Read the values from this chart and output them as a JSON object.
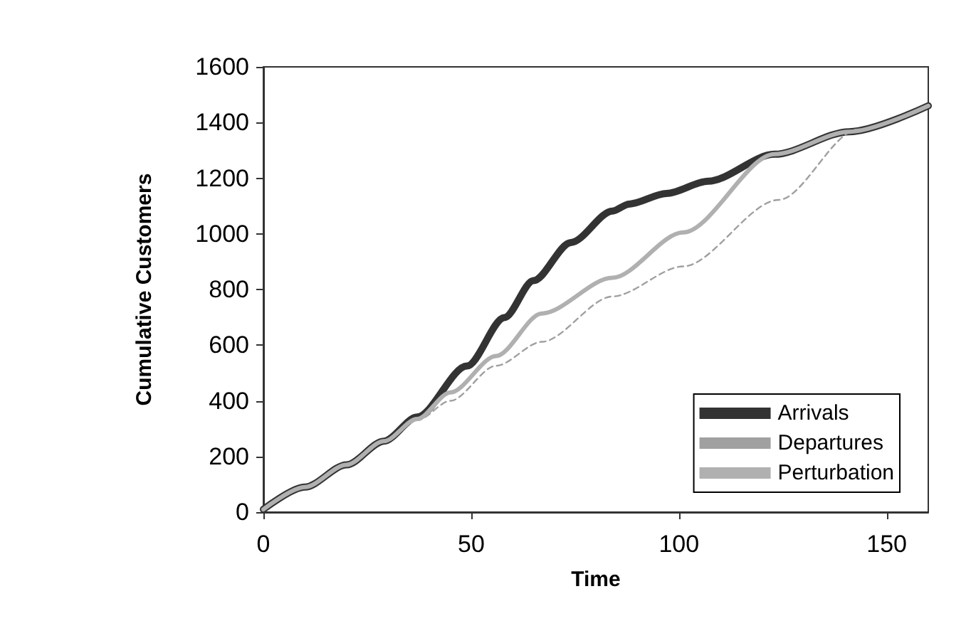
{
  "chart_data": {
    "type": "line",
    "xlabel": "Time",
    "ylabel": "Cumulative Customers",
    "xlim": [
      0,
      160
    ],
    "xticks": [
      0,
      50,
      100,
      150
    ],
    "ylim": [
      0,
      1600
    ],
    "yticks": [
      0,
      200,
      400,
      600,
      800,
      1000,
      1200,
      1400,
      1600
    ],
    "grid": false,
    "legend": "bottom right",
    "marker": "none",
    "series": [
      {
        "name": "Arrivals",
        "color": "#333333",
        "line_style": "solid",
        "x": [
          0,
          10,
          20,
          29,
          37,
          49,
          58,
          65,
          74,
          84,
          88,
          97,
          107,
          123,
          141,
          160
        ],
        "values": [
          10,
          90,
          170,
          255,
          342,
          525,
          699,
          832,
          969,
          1082,
          1107,
          1145,
          1189,
          1286,
          1367,
          1460
        ]
      },
      {
        "name": "Departures",
        "color": "#a0a0a0",
        "line_style": "dashed",
        "x": [
          0,
          10,
          20,
          29,
          37,
          45,
          56,
          67,
          84,
          101,
          124,
          143,
          160
        ],
        "values": [
          10,
          90,
          170,
          255,
          330,
          400,
          526,
          612,
          775,
          883,
          1122,
          1375,
          1460
        ]
      },
      {
        "name": "Perturbation",
        "color": "#b0b0b0",
        "line_style": "solid",
        "x": [
          0,
          10,
          20,
          29,
          37,
          45,
          56,
          67,
          84,
          101,
          123,
          141,
          160
        ],
        "values": [
          10,
          90,
          170,
          255,
          335,
          430,
          561,
          714,
          842,
          1005,
          1286,
          1367,
          1460
        ]
      }
    ]
  }
}
